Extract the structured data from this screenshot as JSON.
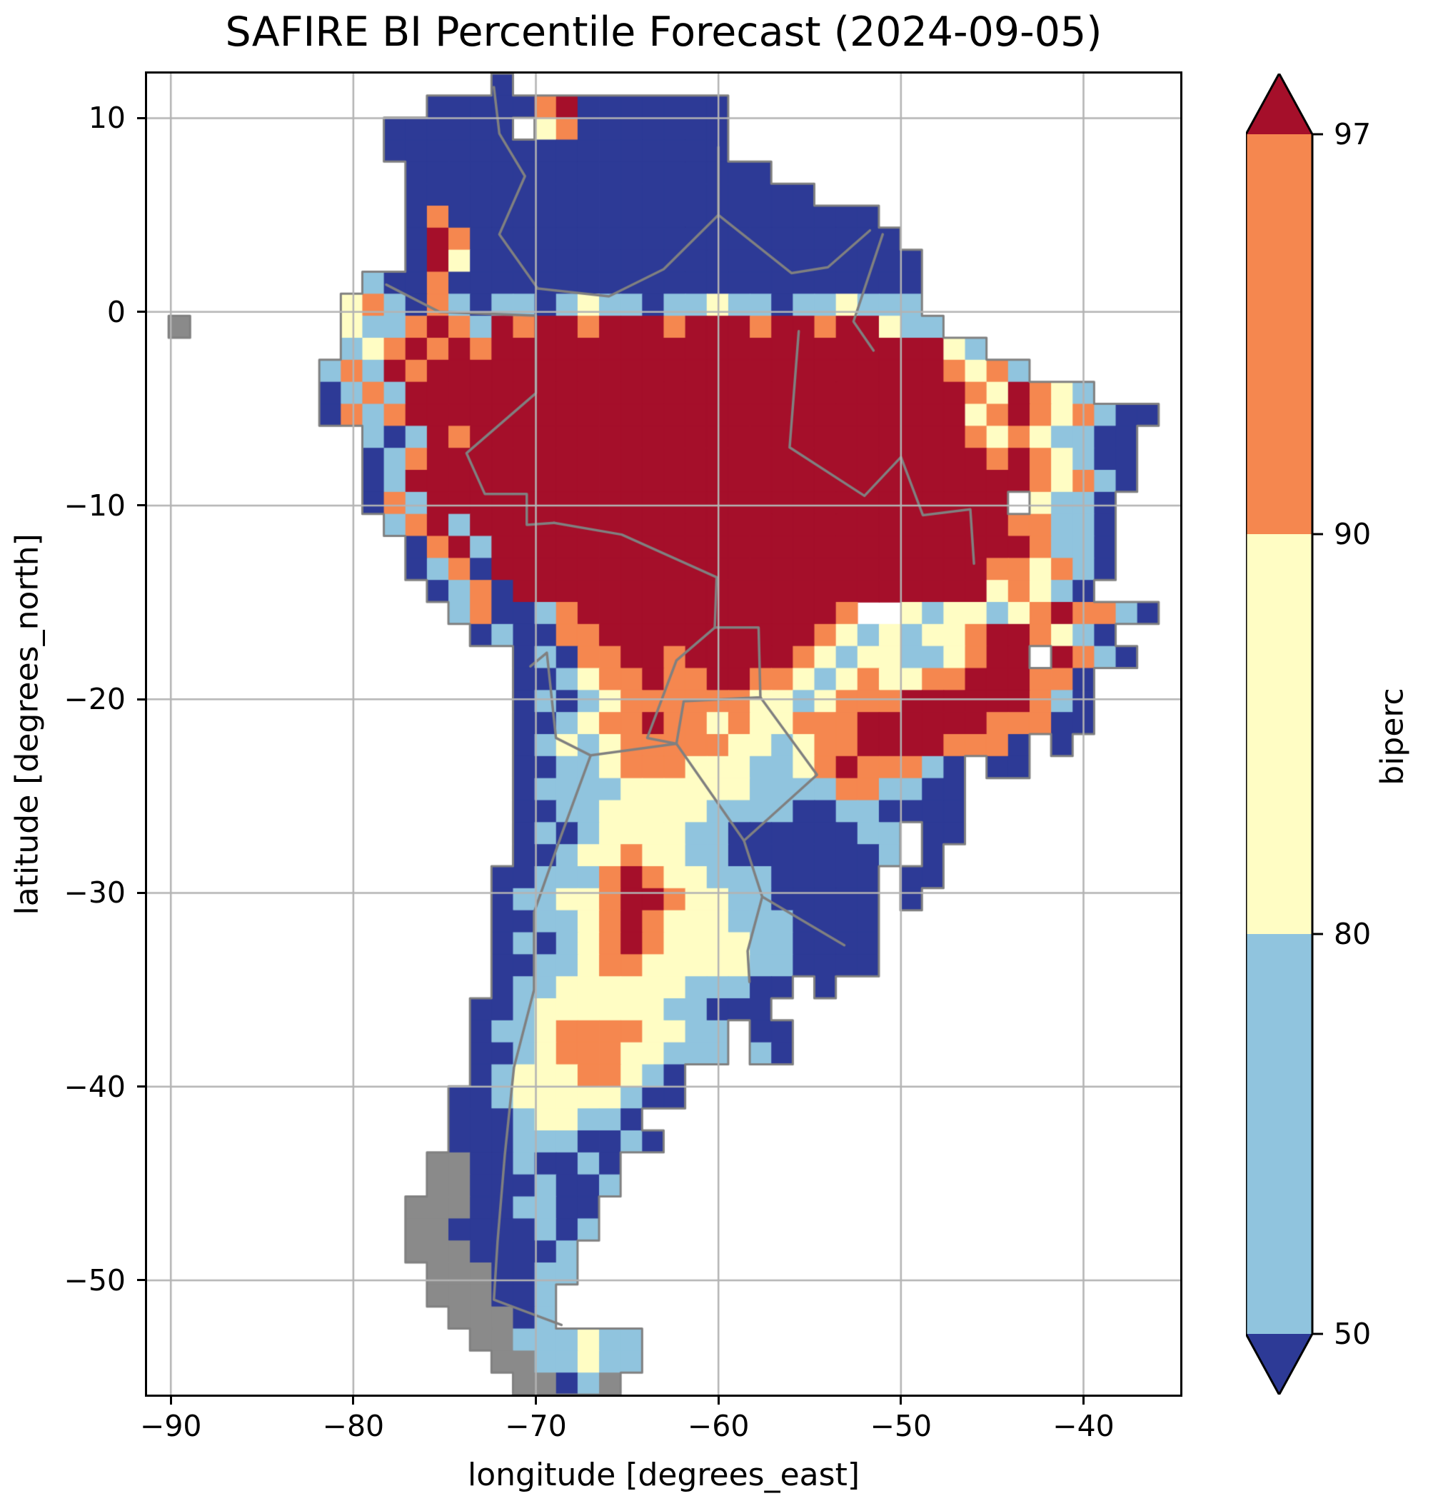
{
  "title": "SAFIRE BI Percentile Forecast (2024-09-05)",
  "axes": {
    "xlabel": "longitude [degrees_east]",
    "ylabel": "latitude [degrees_north]",
    "x_ticks": [
      {
        "value": -90,
        "label": "−90"
      },
      {
        "value": -80,
        "label": "−80"
      },
      {
        "value": -70,
        "label": "−70"
      },
      {
        "value": -60,
        "label": "−60"
      },
      {
        "value": -50,
        "label": "−50"
      },
      {
        "value": -40,
        "label": "−40"
      }
    ],
    "y_ticks": [
      {
        "value": 10,
        "label": "10"
      },
      {
        "value": 0,
        "label": "0"
      },
      {
        "value": -10,
        "label": "−10"
      },
      {
        "value": -20,
        "label": "−20"
      },
      {
        "value": -30,
        "label": "−30"
      },
      {
        "value": -40,
        "label": "−40"
      },
      {
        "value": -50,
        "label": "−50"
      }
    ],
    "grid_color": "#b3b3b3",
    "spine_color": "#000000"
  },
  "colorbar": {
    "label": "biperc",
    "boundaries": [
      50,
      80,
      90,
      97
    ],
    "tick_labels": [
      "97",
      "90",
      "80",
      "50"
    ],
    "segments": [
      {
        "range": "90–97",
        "color": "#f5874f"
      },
      {
        "range": "80–90",
        "color": "#fffdc4"
      },
      {
        "range": "50–80",
        "color": "#90c4de"
      }
    ],
    "over_color": "#a50f2a",
    "under_color": "#2d3a96",
    "outline_color": "#000000"
  },
  "chart_data": {
    "type": "heatmap",
    "title": "SAFIRE BI Percentile Forecast (2024-09-05)",
    "xlabel": "longitude [degrees_east]",
    "ylabel": "latitude [degrees_north]",
    "value_label": "biperc",
    "extent": {
      "lon_min": -91.3,
      "lon_max": -34.7,
      "lat_min": -55.9,
      "lat_max": 12.3
    },
    "boundary_color": "#808080",
    "classes": {
      "1": {
        "meaning": "below 50",
        "color": "#2d3a96"
      },
      "2": {
        "meaning": "50–80",
        "color": "#90c4de"
      },
      "3": {
        "meaning": "80–90",
        "color": "#fffdc4"
      },
      "4": {
        "meaning": "90–97",
        "color": "#f5874f"
      },
      "5": {
        "meaning": "above 97",
        "color": "#a50f2a"
      },
      "6": {
        "meaning": "no data / glacier",
        "color": "#8a8a8a"
      },
      ".": {
        "meaning": "ocean",
        "color": null
      }
    },
    "grid_cols": 48,
    "grid_rows": 60,
    "grid": [
      "................1...............................",
      ".............11111451111111.....................",
      "...........111111.341111111.....................",
      "...........1111111111111111.....................",
      "............11111111111111111...................",
      "............1111111111111111111.................",
      "............1411111111111111111111..............",
      "............15411111111111111111111.............",
      "............153111111111111111111111............",
      "..........21141111111111111111111111............",
      ".........342142122123221223221223222............",
      ".6.......3224542545545554555455455322...........",
      ".........234545455555555555555555555532..........",
      "........242545555555555555555555555554342.......",
      "........124255555555555555555555555555435432...",
      "........142455555555555555555555555555345434211",
      "..........212545555555555555555555555543432211",
      "..........124555555555555555555555555554543211",
      "..........125555555555555555555555555555543421.",
      "..........142555555555555555555555555555 3221..",
      "...........2452555555555555555555555555544221..",
      "............145255555555555555555555555554221..",
      "............124155555555555555555555555443421...",
      ".............1241555555555555555555555534321....",
      "..............241124555555555555478323323454421...",
      "...............121144555555555543232334554321...",
      ".................121445545555543233223455 5421...",
      ".................112344544554432343344555441....",
      ".................121234444443323444555555421....",
      ".................112344544343344455555544411.....",
      ".................123234444433234455554441 1......",
      ".................112234443332234544421 11........",
      ".................122223333332222442211..........",
      ".................112233333222211221111...........",
      ".................121233332211111122 11...........",
      ".................112334332211111112 1............",
      "................112224543322211111 11............",
      "................122334554332211111 1.............",
      "................112234543332221111..............",
      "................121234543333221111..............",
      "................112234433333221111...............",
      "................12233333322211 1................",
      "...............11233333322111..................",
      "...............122344443322 11...................",
      "...............112344433222 21...................",
      "...............1233344321.......................",
      "..............11233333211.......................",
      "..............111233221.........................",
      "..............1112221121........................",
      ".............661121121..........................",
      ".............661112112..........................",
      "............666112211...........................",
      "............661111212...........................",
      "............66611112............................",
      ".............6661122............................",
      ".............666112.............................",
      "..............66612.............................",
      "...............66222322.........................",
      "................6622322.........................",
      ".................66126.........................."
    ],
    "borders": [
      [
        [
          -72.3,
          11.6
        ],
        [
          -72.0,
          9.2
        ],
        [
          -70.6,
          7.0
        ],
        [
          -72.0,
          4.0
        ],
        [
          -69.9,
          1.2
        ]
      ],
      [
        [
          -60.0,
          8.5
        ],
        [
          -60.0,
          5.0
        ],
        [
          -63.0,
          2.2
        ],
        [
          -66.0,
          0.8
        ],
        [
          -69.9,
          1.2
        ]
      ],
      [
        [
          -60.0,
          5.0
        ],
        [
          -56.0,
          2.0
        ],
        [
          -54.0,
          2.3
        ],
        [
          -51.7,
          4.2
        ]
      ],
      [
        [
          -78.2,
          1.4
        ],
        [
          -75.3,
          0.0
        ],
        [
          -70.0,
          -0.2
        ],
        [
          -70.0,
          -4.2
        ],
        [
          -73.8,
          -7.3
        ],
        [
          -72.8,
          -9.4
        ],
        [
          -70.5,
          -9.4
        ],
        [
          -70.5,
          -11.0
        ],
        [
          -69.0,
          -10.9
        ]
      ],
      [
        [
          -69.0,
          -10.9
        ],
        [
          -65.3,
          -11.5
        ],
        [
          -60.1,
          -13.7
        ],
        [
          -60.2,
          -16.3
        ],
        [
          -57.8,
          -16.3
        ],
        [
          -57.7,
          -19.9
        ],
        [
          -61.9,
          -20.1
        ],
        [
          -62.3,
          -22.3
        ],
        [
          -67.0,
          -22.9
        ],
        [
          -68.9,
          -22.0
        ],
        [
          -69.4,
          -17.6
        ],
        [
          -70.3,
          -18.3
        ]
      ],
      [
        [
          -67.0,
          -22.9
        ],
        [
          -68.6,
          -27.0
        ],
        [
          -70.1,
          -31.0
        ],
        [
          -70.1,
          -35.0
        ],
        [
          -71.2,
          -39.0
        ],
        [
          -71.7,
          -43.5
        ],
        [
          -72.1,
          -48.0
        ],
        [
          -72.3,
          -51.0
        ],
        [
          -68.6,
          -52.3
        ]
      ],
      [
        [
          -57.7,
          -19.9
        ],
        [
          -54.6,
          -23.9
        ],
        [
          -58.6,
          -27.3
        ],
        [
          -62.3,
          -22.3
        ]
      ],
      [
        [
          -58.6,
          -27.3
        ],
        [
          -57.6,
          -30.2
        ],
        [
          -58.4,
          -33.0
        ],
        [
          -58.3,
          -34.6
        ]
      ],
      [
        [
          -57.6,
          -30.2
        ],
        [
          -53.1,
          -32.7
        ]
      ],
      [
        [
          -62.3,
          -22.3
        ],
        [
          -63.9,
          -22.0
        ],
        [
          -62.3,
          -18.0
        ],
        [
          -60.2,
          -16.3
        ]
      ],
      [
        [
          -55.6,
          -1.0
        ],
        [
          -56.1,
          -7.0
        ],
        [
          -52.0,
          -9.5
        ],
        [
          -50.0,
          -7.5
        ],
        [
          -48.8,
          -10.5
        ],
        [
          -46.2,
          -10.2
        ],
        [
          -46.0,
          -13.0
        ]
      ],
      [
        [
          -51.0,
          4.0
        ],
        [
          -52.6,
          -0.5
        ],
        [
          -51.5,
          -2.0
        ]
      ]
    ]
  }
}
